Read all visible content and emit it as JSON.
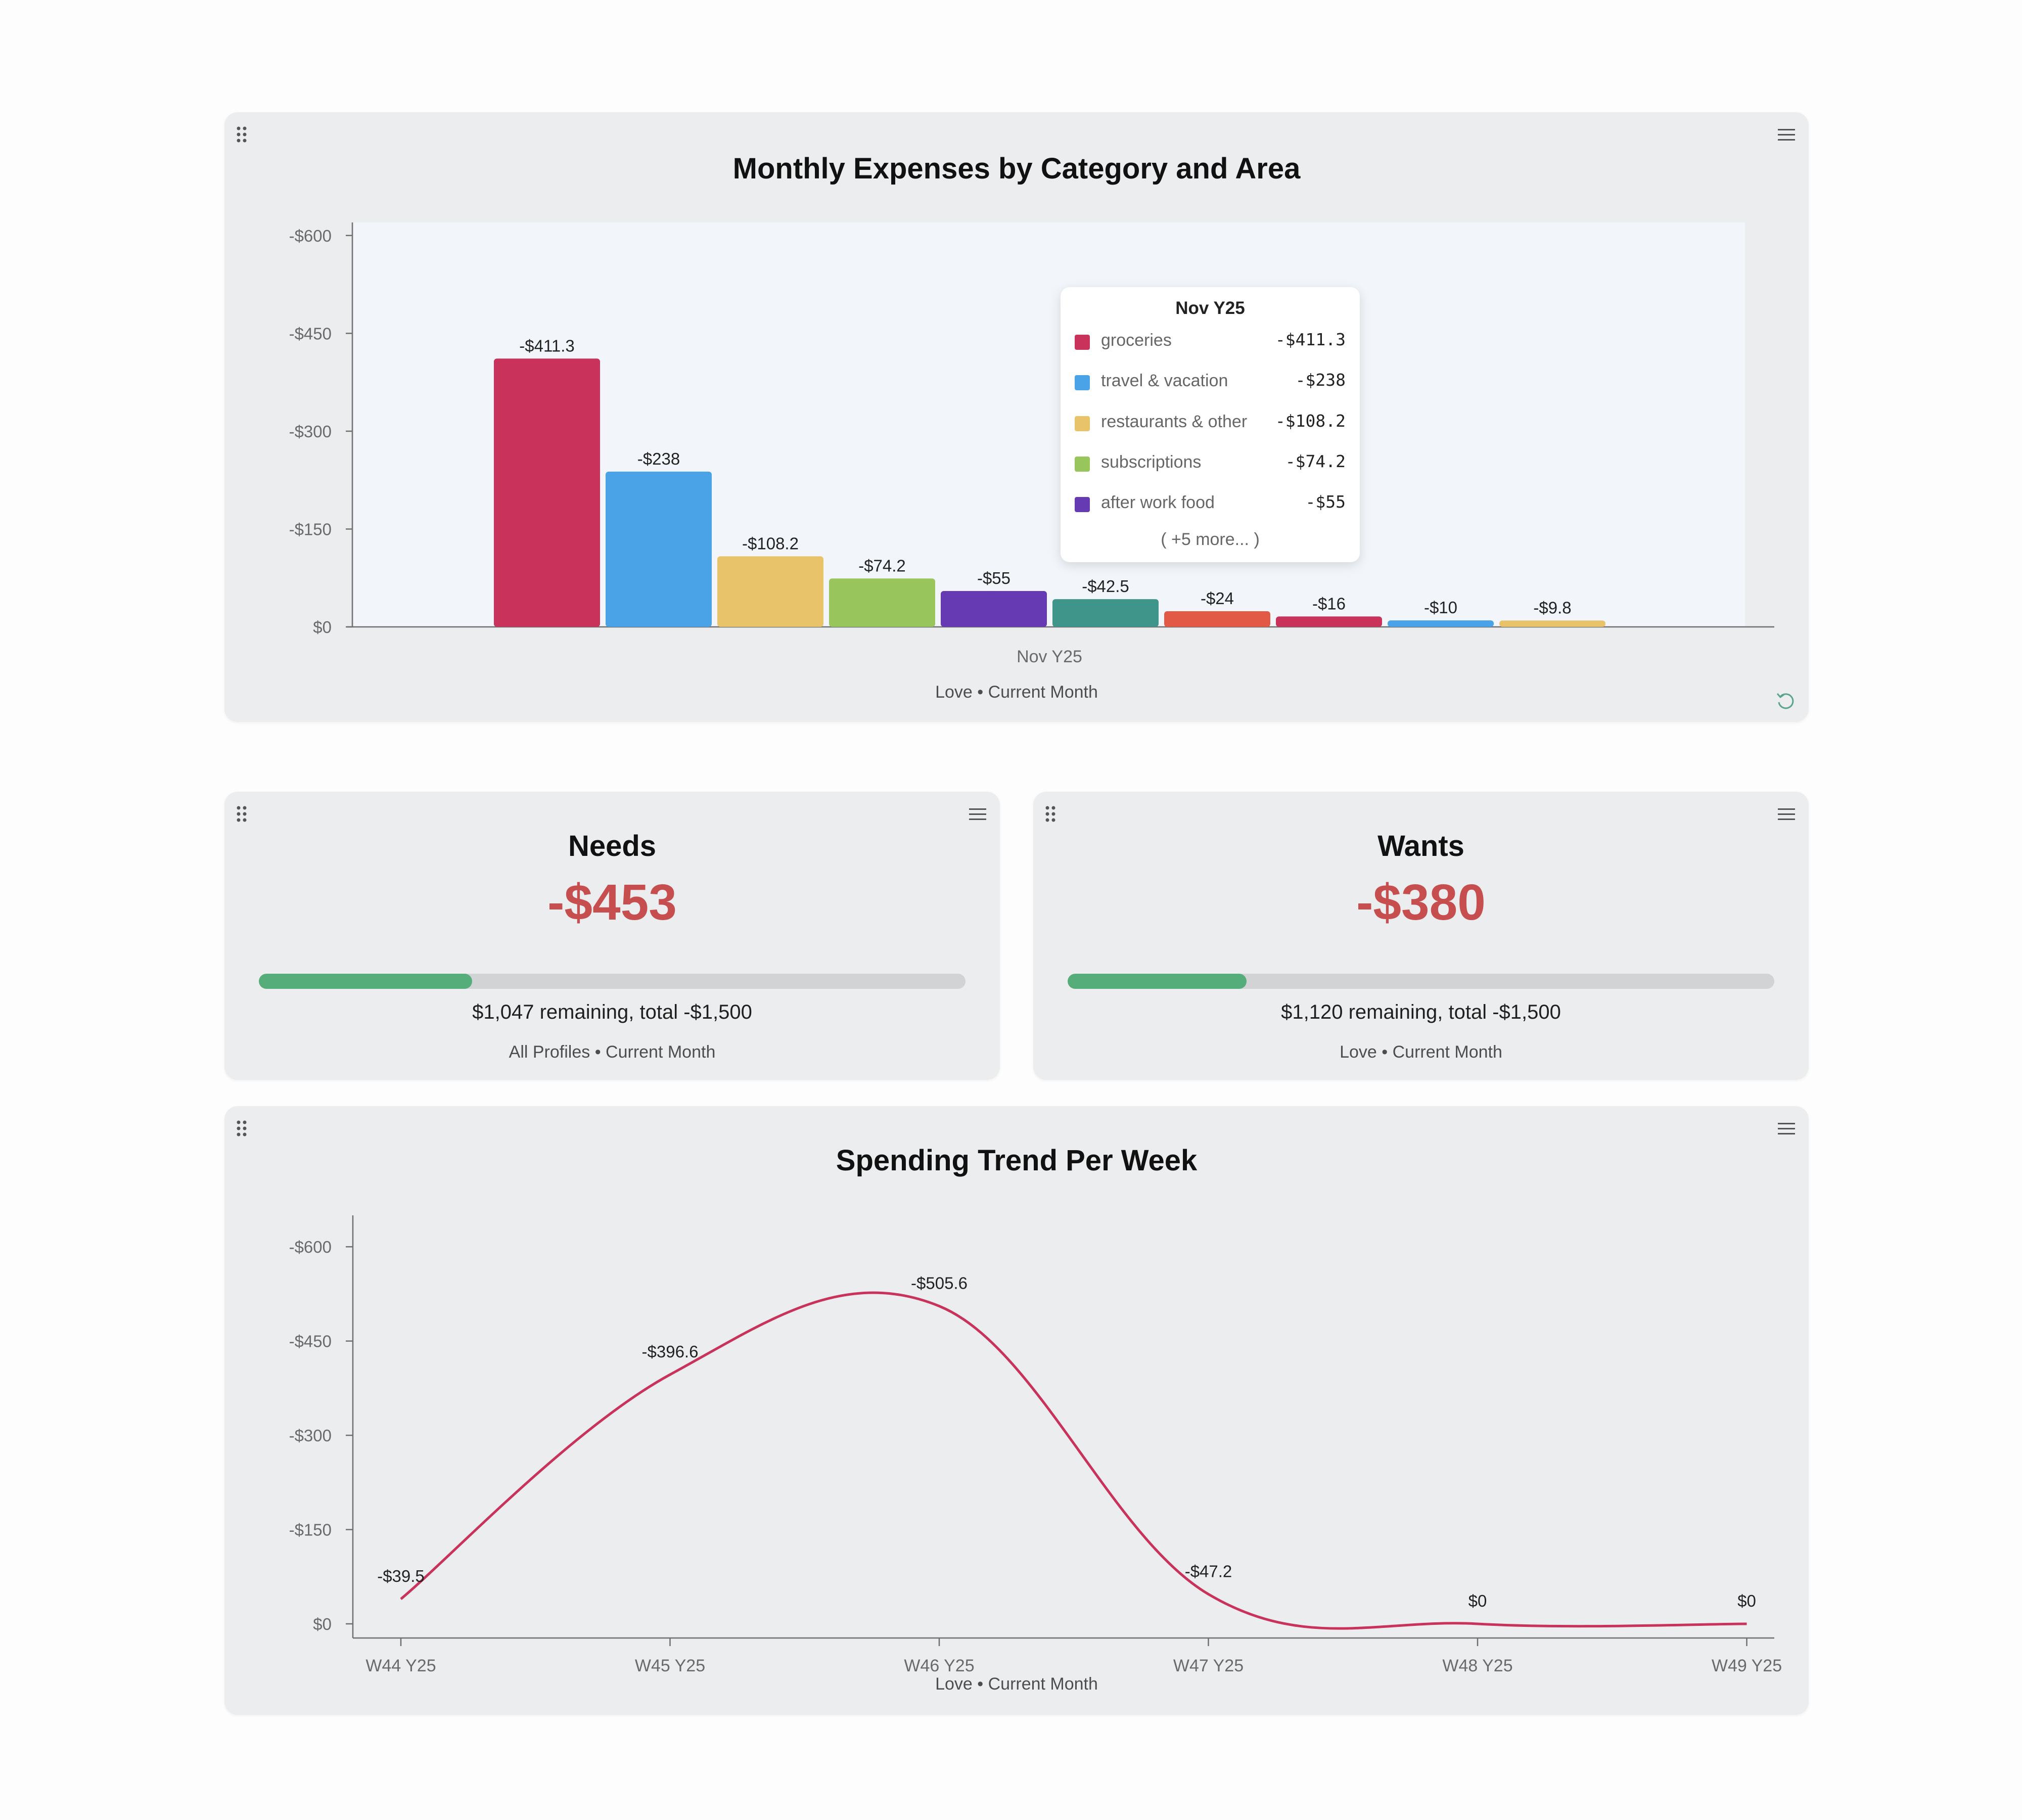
{
  "colors": {
    "groceries": "#c9325a",
    "travel": "#4aa3e6",
    "restaurants": "#e9c36a",
    "subscriptions": "#99c55d",
    "after_work": "#653ab3",
    "teal": "#3f958a",
    "orange": "#e25a45",
    "line": "#c9325a",
    "negative_value": "#c74e4e",
    "progress": "#55ad7a"
  },
  "expenses": {
    "title": "Monthly Expenses by Category and Area",
    "subtitle": "Love • Current Month",
    "tooltip": {
      "title": "Nov Y25",
      "rows": [
        {
          "name": "groceries",
          "value": "-$411.3",
          "color": "#c9325a"
        },
        {
          "name": "travel & vacation",
          "value": "-$238",
          "color": "#4aa3e6"
        },
        {
          "name": "restaurants & other",
          "value": "-$108.2",
          "color": "#e9c36a"
        },
        {
          "name": "subscriptions",
          "value": "-$74.2",
          "color": "#99c55d"
        },
        {
          "name": "after work food",
          "value": "-$55",
          "color": "#653ab3"
        }
      ],
      "more": "( +5 more... )"
    }
  },
  "needs": {
    "title": "Needs",
    "value": "-$453",
    "progress": 0.302,
    "remaining": "$1,047 remaining, total -$1,500",
    "subtitle": "All Profiles • Current Month"
  },
  "wants": {
    "title": "Wants",
    "value": "-$380",
    "progress": 0.253,
    "remaining": "$1,120 remaining, total -$1,500",
    "subtitle": "Love • Current Month"
  },
  "trend": {
    "title": "Spending Trend Per Week",
    "subtitle": "Love • Current Month"
  },
  "chart_data": [
    {
      "type": "bar",
      "title": "Monthly Expenses by Category and Area",
      "xlabel": "Nov Y25",
      "ylabel": "",
      "ylim": [
        0,
        620
      ],
      "yticks": [
        0,
        150,
        300,
        450,
        600
      ],
      "ytick_labels": [
        "$0",
        "-$150",
        "-$300",
        "-$450",
        "-$600"
      ],
      "bars": [
        {
          "value": 411.3,
          "label": "-$411.3",
          "color": "#c9325a"
        },
        {
          "value": 238,
          "label": "-$238",
          "color": "#4aa3e6"
        },
        {
          "value": 108.2,
          "label": "-$108.2",
          "color": "#e9c36a"
        },
        {
          "value": 74.2,
          "label": "-$74.2",
          "color": "#99c55d"
        },
        {
          "value": 55,
          "label": "-$55",
          "color": "#653ab3"
        },
        {
          "value": 42.5,
          "label": "-$42.5",
          "color": "#3f958a"
        },
        {
          "value": 24,
          "label": "-$24",
          "color": "#e25a45"
        },
        {
          "value": 16,
          "label": "-$16",
          "color": "#c9325a"
        },
        {
          "value": 10,
          "label": "-$10",
          "color": "#4aa3e6"
        },
        {
          "value": 9.8,
          "label": "-$9.8",
          "color": "#e9c36a"
        }
      ]
    },
    {
      "type": "line",
      "title": "Spending Trend Per Week",
      "ylim": [
        0,
        650
      ],
      "yticks": [
        0,
        150,
        300,
        450,
        600
      ],
      "ytick_labels": [
        "$0",
        "-$150",
        "-$300",
        "-$450",
        "-$600"
      ],
      "categories": [
        "W44 Y25",
        "W45 Y25",
        "W46 Y25",
        "W47 Y25",
        "W48 Y25",
        "W49 Y25"
      ],
      "values": [
        39.5,
        396.6,
        505.6,
        47.2,
        0,
        0
      ],
      "labels": [
        "-$39.5",
        "-$396.6",
        "-$505.6",
        "-$47.2",
        "$0",
        "$0"
      ],
      "color": "#c9325a"
    }
  ]
}
